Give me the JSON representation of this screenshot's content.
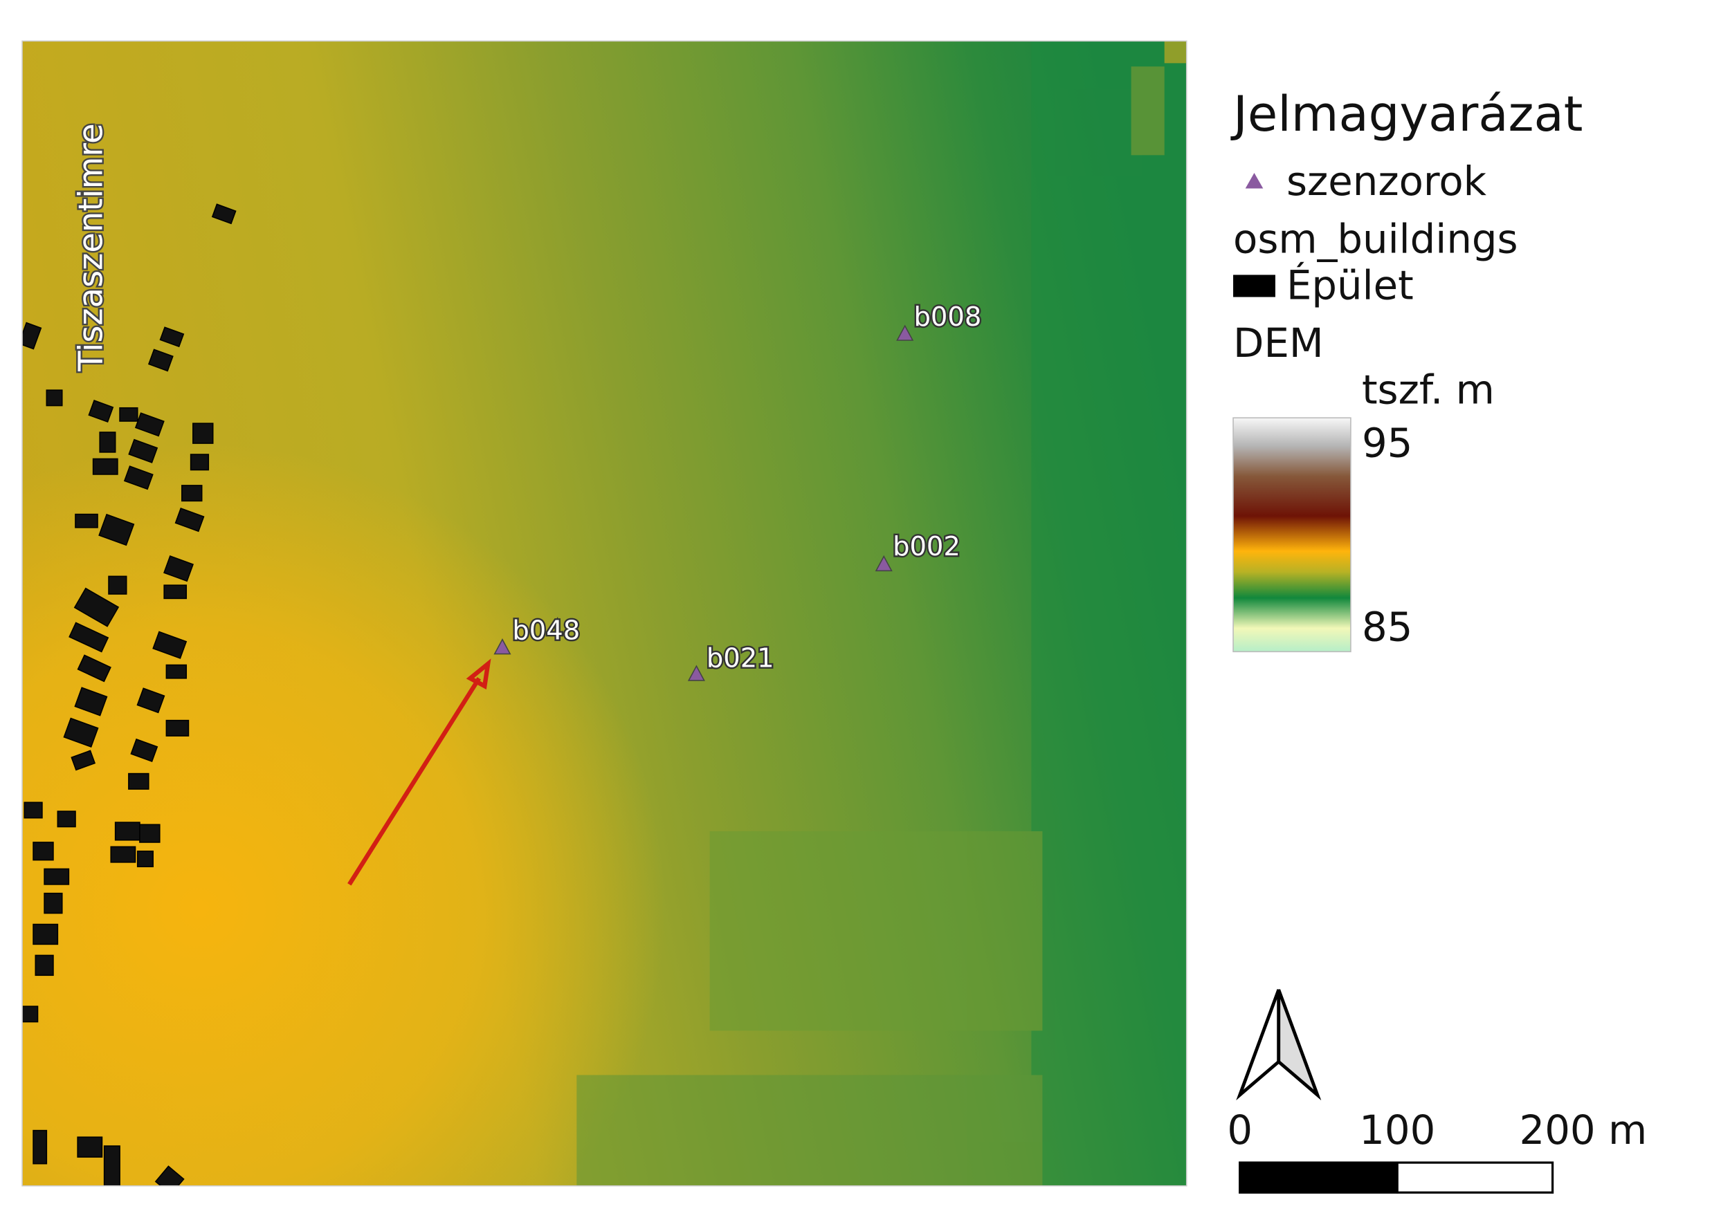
{
  "map": {
    "place_label": "Tiszaszentimre",
    "sensors": [
      {
        "label": "b008"
      },
      {
        "label": "b002"
      },
      {
        "label": "b048"
      },
      {
        "label": "b021"
      }
    ]
  },
  "legend": {
    "title": "Jelmagyarázat",
    "sensor_layer": "szenzorok",
    "building_layer": "osm_buildings",
    "building_class": "Épület",
    "dem_layer": "DEM",
    "dem_unit": "tszf. m",
    "dem_max": 95,
    "dem_min": 85
  },
  "scale_bar": {
    "labels": [
      "0",
      "100",
      "200 m"
    ]
  }
}
